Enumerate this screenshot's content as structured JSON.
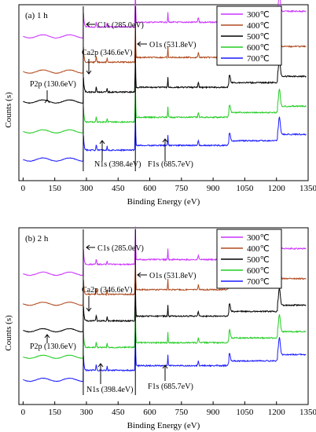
{
  "chart_data": [
    {
      "type": "line",
      "panel_label": "(a) 1 h",
      "xlabel": "Binding Energy (eV)",
      "ylabel": "Counts (s)",
      "xlim": [
        -20,
        1350
      ],
      "x_ticks": [
        0,
        150,
        300,
        450,
        600,
        750,
        900,
        1050,
        1200,
        1350
      ],
      "legend_position": "top-right",
      "annotations": [
        {
          "text": "C1s (285.0eV)",
          "x": 285.0
        },
        {
          "text": "Ca2p (346.6eV)",
          "x": 346.6
        },
        {
          "text": "O1s (531.8eV)",
          "x": 531.8
        },
        {
          "text": "P2p (130.6eV)",
          "x": 130.6
        },
        {
          "text": "N1s (398.4eV)",
          "x": 398.4
        },
        {
          "text": "F1s (685.7eV)",
          "x": 685.7
        }
      ],
      "series": [
        {
          "name": "300℃",
          "color": "#cc33ff",
          "baseline": 0.82,
          "values": [
            [
              0,
              0.82
            ],
            [
              280,
              0.83
            ],
            [
              285,
              1.0
            ],
            [
              290,
              0.86
            ],
            [
              350,
              0.86
            ],
            [
              530,
              0.88
            ],
            [
              532,
              0.95
            ],
            [
              540,
              0.9
            ],
            [
              700,
              0.91
            ],
            [
              980,
              0.92
            ],
            [
              990,
              0.95
            ],
            [
              1200,
              0.95
            ],
            [
              1215,
              1.02
            ],
            [
              1340,
              1.02
            ]
          ]
        },
        {
          "name": "400℃",
          "color": "#b04a1e",
          "baseline": 0.62
        },
        {
          "name": "500℃",
          "color": "#000000",
          "baseline": 0.45
        },
        {
          "name": "600℃",
          "color": "#22cc22",
          "baseline": 0.28
        },
        {
          "name": "700℃",
          "color": "#1a1aff",
          "baseline": 0.12
        }
      ]
    },
    {
      "type": "line",
      "panel_label": "(b) 2 h",
      "xlabel": "Binding Energy (eV)",
      "ylabel": "Counts (s)",
      "xlim": [
        -20,
        1350
      ],
      "x_ticks": [
        0,
        150,
        300,
        450,
        600,
        750,
        900,
        1050,
        1200,
        1350
      ],
      "legend_position": "top-right",
      "annotations": [
        {
          "text": "C1s (285.0eV)",
          "x": 285.0
        },
        {
          "text": "Ca2p (346.6eV)",
          "x": 346.6
        },
        {
          "text": "O1s (531.8eV)",
          "x": 531.8
        },
        {
          "text": "P2p (130.6eV)",
          "x": 130.6
        },
        {
          "text": "N1s (398.4eV)",
          "x": 398.4
        },
        {
          "text": "F1s (685.7eV)",
          "x": 685.7
        }
      ],
      "series": [
        {
          "name": "300℃",
          "color": "#cc33ff",
          "baseline": 0.74
        },
        {
          "name": "400℃",
          "color": "#b04a1e",
          "baseline": 0.57
        },
        {
          "name": "500℃",
          "color": "#000000",
          "baseline": 0.42
        },
        {
          "name": "600℃",
          "color": "#22cc22",
          "baseline": 0.27
        },
        {
          "name": "700℃",
          "color": "#1a1aff",
          "baseline": 0.14
        }
      ]
    }
  ]
}
